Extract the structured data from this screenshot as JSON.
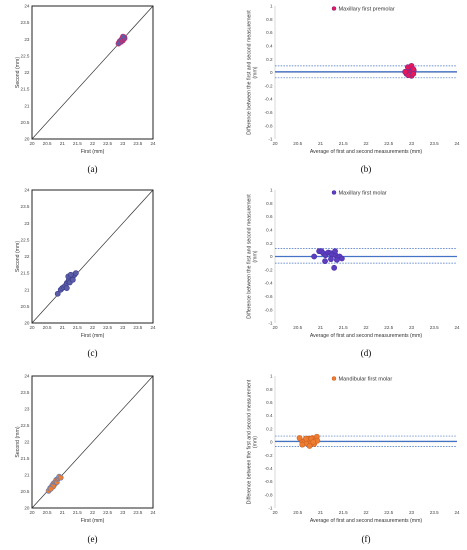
{
  "chart_data": [
    {
      "panel_label": "(a)",
      "type": "scatter",
      "xlabel": "First (mm)",
      "ylabel": "Second (mm)",
      "xlim": [
        20,
        24
      ],
      "ylim": [
        20,
        24
      ],
      "x_ticks": [
        "20",
        "20.5",
        "21",
        "21.5",
        "22",
        "22.5",
        "23",
        "23.5",
        "24"
      ],
      "y_ticks": [
        "20",
        "20.5",
        "21",
        "21.5",
        "22",
        "22.5",
        "23",
        "23.5",
        "24"
      ],
      "identity_line": true,
      "marker_color": "#5b5ea6",
      "marker_edge": "#e8175d",
      "points": [
        [
          22.88,
          22.9
        ],
        [
          22.92,
          22.95
        ],
        [
          22.95,
          22.97
        ],
        [
          22.97,
          22.98
        ],
        [
          22.99,
          23.0
        ],
        [
          23.0,
          22.96
        ],
        [
          23.02,
          23.04
        ],
        [
          23.03,
          23.0
        ],
        [
          22.94,
          22.92
        ],
        [
          23.05,
          23.06
        ],
        [
          22.9,
          22.94
        ],
        [
          22.98,
          23.02
        ],
        [
          23.06,
          23.03
        ],
        [
          22.86,
          22.87
        ],
        [
          23.01,
          23.08
        ]
      ]
    },
    {
      "panel_label": "(b)",
      "type": "scatter",
      "series_name": "Maxillary first premolar",
      "xlabel": "Average of first and second measurements (mm)",
      "ylabel": "Difference between the first and second measurement (mm)",
      "xlim": [
        20,
        24
      ],
      "ylim": [
        -1,
        1
      ],
      "x_ticks": [
        "20",
        "20.5",
        "21",
        "21.5",
        "22",
        "22.5",
        "23",
        "23.5",
        "24"
      ],
      "y_ticks": [
        "-1",
        "-0.8",
        "-0.6",
        "-0.4",
        "-0.2",
        "0",
        "0.2",
        "0.4",
        "0.6",
        "0.8",
        "1"
      ],
      "mean_line": 0.01,
      "limits_of_agreement": [
        -0.08,
        0.1
      ],
      "marker_color": "#e8175d",
      "marker_edge": "#7b2d8e",
      "points": [
        [
          22.89,
          -0.02
        ],
        [
          22.94,
          0.04
        ],
        [
          22.96,
          0.03
        ],
        [
          22.98,
          0.0
        ],
        [
          22.99,
          0.07
        ],
        [
          23.0,
          -0.05
        ],
        [
          23.02,
          0.02
        ],
        [
          23.02,
          0.06
        ],
        [
          22.93,
          -0.04
        ],
        [
          23.05,
          0.03
        ],
        [
          22.92,
          0.08
        ],
        [
          23.0,
          0.1
        ],
        [
          23.04,
          -0.02
        ],
        [
          22.86,
          0.01
        ],
        [
          23.04,
          0.05
        ]
      ]
    },
    {
      "panel_label": "(c)",
      "type": "scatter",
      "xlabel": "First (mm)",
      "ylabel": "Second (mm)",
      "xlim": [
        20,
        24
      ],
      "ylim": [
        20,
        24
      ],
      "x_ticks": [
        "20",
        "20.5",
        "21",
        "21.5",
        "22",
        "22.5",
        "23",
        "23.5",
        "24"
      ],
      "y_ticks": [
        "20",
        "20.5",
        "21",
        "21.5",
        "22",
        "22.5",
        "23",
        "23.5",
        "24"
      ],
      "identity_line": true,
      "marker_color": "#5b5ea6",
      "marker_edge": "#3a3c8c",
      "points": [
        [
          20.85,
          20.88
        ],
        [
          20.95,
          21.0
        ],
        [
          21.0,
          21.05
        ],
        [
          21.05,
          21.08
        ],
        [
          21.1,
          21.12
        ],
        [
          21.15,
          21.2
        ],
        [
          21.2,
          21.25
        ],
        [
          21.22,
          21.3
        ],
        [
          21.25,
          21.22
        ],
        [
          21.3,
          21.35
        ],
        [
          21.35,
          21.4
        ],
        [
          21.4,
          21.45
        ],
        [
          21.45,
          21.5
        ],
        [
          21.2,
          21.4
        ],
        [
          21.15,
          21.05
        ],
        [
          21.35,
          21.3
        ],
        [
          21.28,
          21.45
        ]
      ]
    },
    {
      "panel_label": "(d)",
      "type": "scatter",
      "series_name": "Maxillary first molar",
      "xlabel": "Average of first and second measurements (mm)",
      "ylabel": "Difference between the first and second measurement (mm)",
      "xlim": [
        20,
        24
      ],
      "ylim": [
        -1,
        1
      ],
      "x_ticks": [
        "20",
        "20.5",
        "21",
        "21.5",
        "22",
        "22.5",
        "23",
        "23.5",
        "24"
      ],
      "y_ticks": [
        "-1",
        "-0.8",
        "-0.6",
        "-0.4",
        "-0.2",
        "0",
        "0.2",
        "0.4",
        "0.6",
        "0.8",
        "1"
      ],
      "mean_line": 0.0,
      "limits_of_agreement": [
        -0.1,
        0.12
      ],
      "marker_color": "#5b3fbf",
      "marker_edge": "#4b2fa8",
      "points": [
        [
          20.86,
          0.0
        ],
        [
          20.97,
          0.08
        ],
        [
          21.02,
          0.08
        ],
        [
          21.06,
          0.05
        ],
        [
          21.11,
          0.02
        ],
        [
          21.17,
          0.06
        ],
        [
          21.22,
          0.05
        ],
        [
          21.26,
          0.03
        ],
        [
          21.23,
          -0.04
        ],
        [
          21.33,
          0.02
        ],
        [
          21.37,
          -0.02
        ],
        [
          21.42,
          0.0
        ],
        [
          21.47,
          -0.03
        ],
        [
          21.3,
          -0.17
        ],
        [
          21.1,
          -0.07
        ],
        [
          21.32,
          0.08
        ],
        [
          21.36,
          -0.05
        ]
      ]
    },
    {
      "panel_label": "(e)",
      "type": "scatter",
      "xlabel": "First (mm)",
      "ylabel": "Second (mm)",
      "xlim": [
        20,
        24
      ],
      "ylim": [
        20,
        24
      ],
      "x_ticks": [
        "20",
        "20.5",
        "21",
        "21.5",
        "22",
        "22.5",
        "23",
        "23.5",
        "24"
      ],
      "y_ticks": [
        "20",
        "20.5",
        "21",
        "21.5",
        "22",
        "22.5",
        "23",
        "23.5",
        "24"
      ],
      "identity_line": true,
      "marker_color": "#ed7d31",
      "marker_edge": "#5b7fbf",
      "points": [
        [
          20.55,
          20.52
        ],
        [
          20.6,
          20.6
        ],
        [
          20.65,
          20.65
        ],
        [
          20.68,
          20.7
        ],
        [
          20.72,
          20.75
        ],
        [
          20.75,
          20.72
        ],
        [
          20.78,
          20.8
        ],
        [
          20.8,
          20.85
        ],
        [
          20.82,
          20.78
        ],
        [
          20.85,
          20.88
        ],
        [
          20.88,
          20.9
        ],
        [
          20.9,
          20.95
        ],
        [
          20.95,
          20.92
        ],
        [
          20.7,
          20.65
        ],
        [
          20.62,
          20.58
        ]
      ]
    },
    {
      "panel_label": "(f)",
      "type": "scatter",
      "series_name": "Mandibular first molar",
      "xlabel": "Average of first and second measurements (mm)",
      "ylabel": "Difference between the first and second measurement (mm)",
      "xlim": [
        20,
        24
      ],
      "ylim": [
        -1,
        1
      ],
      "x_ticks": [
        "20",
        "20.5",
        "21",
        "21.5",
        "22",
        "22.5",
        "23",
        "23.5",
        "24"
      ],
      "y_ticks": [
        "-1",
        "-0.8",
        "-0.6",
        "-0.4",
        "-0.2",
        "0",
        "0.2",
        "0.4",
        "0.6",
        "0.8",
        "1"
      ],
      "mean_line": 0.01,
      "limits_of_agreement": [
        -0.07,
        0.09
      ],
      "marker_color": "#ed7d31",
      "marker_edge": "#d06020",
      "points": [
        [
          20.54,
          0.06
        ],
        [
          20.6,
          0.0
        ],
        [
          20.65,
          0.02
        ],
        [
          20.69,
          -0.02
        ],
        [
          20.73,
          0.05
        ],
        [
          20.74,
          0.04
        ],
        [
          20.79,
          -0.02
        ],
        [
          20.82,
          0.06
        ],
        [
          20.8,
          0.05
        ],
        [
          20.86,
          -0.03
        ],
        [
          20.89,
          0.03
        ],
        [
          20.92,
          0.08
        ],
        [
          20.93,
          0.02
        ],
        [
          20.68,
          0.05
        ],
        [
          20.6,
          -0.04
        ],
        [
          20.76,
          -0.06
        ],
        [
          20.84,
          0.0
        ]
      ]
    }
  ]
}
